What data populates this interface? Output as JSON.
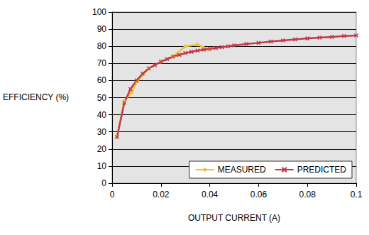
{
  "chart_data": {
    "type": "line",
    "x_label": "OUTPUT CURRENT (A)",
    "y_label": "EFFICIENCY (%)",
    "xlim": [
      0,
      0.1
    ],
    "xticks": [
      0,
      0.02,
      0.04,
      0.06,
      0.08,
      0.1
    ],
    "ylim": [
      0,
      100
    ],
    "yticks": [
      0,
      10,
      20,
      30,
      40,
      50,
      60,
      70,
      80,
      90,
      100
    ],
    "grid": true,
    "legend": "bottom-right",
    "series": [
      {
        "name": "MEASURED",
        "color": "#f2c12e",
        "marker": "diamond",
        "line_style": "solid",
        "x": [
          0.002,
          0.005,
          0.008,
          0.01,
          0.015,
          0.02,
          0.025,
          0.03,
          0.035,
          0.04
        ],
        "values": [
          27,
          48,
          53,
          59,
          67,
          71,
          74,
          80,
          81,
          78
        ]
      },
      {
        "name": "PREDICTED",
        "color": "#c0394b",
        "marker": "x",
        "line_style": "solid",
        "x": [
          0.002,
          0.005,
          0.0075,
          0.01,
          0.0125,
          0.015,
          0.0175,
          0.02,
          0.0225,
          0.025,
          0.0275,
          0.03,
          0.0325,
          0.035,
          0.0375,
          0.04,
          0.0425,
          0.045,
          0.0475,
          0.05,
          0.055,
          0.06,
          0.065,
          0.07,
          0.075,
          0.08,
          0.085,
          0.09,
          0.095,
          0.1
        ],
        "values": [
          27,
          47,
          55,
          60,
          64,
          67,
          69,
          71,
          72.5,
          74,
          75,
          76,
          76.8,
          77.5,
          78,
          78.5,
          79,
          79.5,
          80,
          80.5,
          81.3,
          82,
          82.8,
          83.4,
          84,
          84.6,
          85.1,
          85.5,
          86,
          86.3
        ]
      }
    ]
  }
}
